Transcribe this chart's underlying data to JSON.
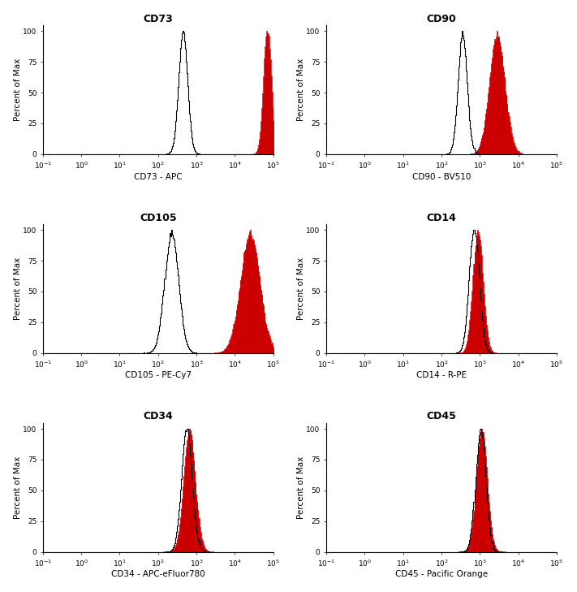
{
  "panels": [
    {
      "title": "CD73",
      "xlabel": "CD73 - APC",
      "iso_mu": 2.65,
      "iso_sigma": 0.12,
      "marker_mu": 4.85,
      "marker_sigma": 0.1,
      "marker_spread": 0.35,
      "type": "pos_far"
    },
    {
      "title": "CD90",
      "xlabel": "CD90 - BV510",
      "iso_mu": 2.55,
      "iso_sigma": 0.12,
      "marker_mu": 3.45,
      "marker_sigma": 0.2,
      "marker_spread": 0.3,
      "type": "pos_mid"
    },
    {
      "title": "CD105",
      "xlabel": "CD105 - PE-Cy7",
      "iso_mu": 2.35,
      "iso_sigma": 0.18,
      "marker_mu": 4.4,
      "marker_sigma": 0.25,
      "marker_spread": 0.4,
      "type": "pos_far"
    },
    {
      "title": "CD14",
      "xlabel": "CD14 - R-PE",
      "iso_mu": 2.85,
      "iso_sigma": 0.13,
      "marker_mu": 2.95,
      "marker_sigma": 0.13,
      "marker_spread": 0.18,
      "type": "neg_overlap"
    },
    {
      "title": "CD34",
      "xlabel": "CD34 - APC-eFluor780",
      "iso_mu": 2.75,
      "iso_sigma": 0.14,
      "marker_mu": 2.82,
      "marker_sigma": 0.15,
      "marker_spread": 0.2,
      "type": "neg_overlap"
    },
    {
      "title": "CD45",
      "xlabel": "CD45 - Pacific Orange",
      "iso_mu": 3.02,
      "iso_sigma": 0.13,
      "marker_mu": 3.05,
      "marker_sigma": 0.14,
      "marker_spread": 0.18,
      "type": "neg_overlap"
    }
  ],
  "ylabel": "Percent of Max",
  "yticks": [
    0,
    25,
    50,
    75,
    100
  ],
  "red_color": "#cc0000",
  "black_color": "#000000",
  "bg_color": "#ffffff",
  "title_fontsize": 9,
  "label_fontsize": 7.5,
  "tick_fontsize": 6.5
}
